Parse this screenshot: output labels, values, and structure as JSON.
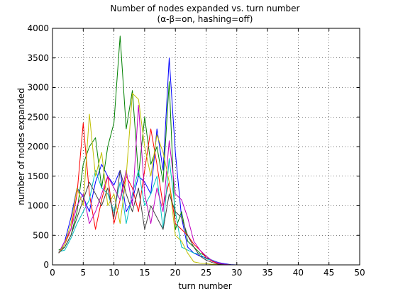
{
  "chart_data": {
    "type": "line",
    "title": "Number of nodes expanded vs. turn number",
    "subtitle": "(α-β=on, hashing=off)",
    "xlabel": "turn number",
    "ylabel": "number of nodes expanded",
    "xlim": [
      0,
      50
    ],
    "ylim": [
      0,
      4000
    ],
    "xticks": [
      0,
      5,
      10,
      15,
      20,
      25,
      30,
      35,
      40,
      45,
      50
    ],
    "yticks": [
      0,
      500,
      1000,
      1500,
      2000,
      2500,
      3000,
      3500,
      4000
    ],
    "grid": true,
    "grid_style": "dotted",
    "legend": "none",
    "series": [
      {
        "color": "#0000ff",
        "x": [
          1,
          2,
          3,
          4,
          5,
          6,
          7,
          8,
          9,
          10,
          11,
          12,
          13,
          14,
          15,
          16,
          17,
          18,
          19,
          20,
          21,
          22,
          23,
          24,
          25,
          26,
          27,
          28,
          29,
          30,
          31,
          32,
          33,
          34,
          35,
          36,
          37,
          38,
          39,
          40,
          41,
          42,
          43,
          44,
          45,
          46,
          47,
          48,
          49,
          50
        ],
        "y": [
          200,
          400,
          800,
          1300,
          1150,
          900,
          1400,
          1700,
          1500,
          1350,
          1600,
          900,
          1100,
          1500,
          1400,
          1200,
          2300,
          1600,
          3500,
          1900,
          800,
          300,
          200,
          150,
          120,
          80,
          40,
          20,
          5,
          0,
          0,
          0,
          0,
          0,
          0,
          0,
          0,
          0,
          0,
          0,
          0,
          0,
          0,
          0,
          0,
          0,
          0,
          0,
          0,
          0
        ]
      },
      {
        "color": "#008000",
        "x": [
          1,
          2,
          3,
          4,
          5,
          6,
          7,
          8,
          9,
          10,
          11,
          12,
          13,
          14,
          15,
          16,
          17,
          18,
          19,
          20,
          21,
          22,
          23,
          24,
          25,
          26,
          27,
          28,
          29,
          30,
          31,
          32,
          33,
          34,
          35,
          36,
          37,
          38,
          39,
          40,
          41,
          42,
          43,
          44,
          45,
          46,
          47,
          48,
          49,
          50
        ],
        "y": [
          250,
          300,
          500,
          900,
          1700,
          2000,
          2150,
          1300,
          2000,
          2400,
          3870,
          2300,
          2950,
          1500,
          2500,
          1700,
          2000,
          1400,
          3100,
          600,
          900,
          400,
          300,
          200,
          150,
          60,
          30,
          10,
          0,
          0,
          0,
          0,
          0,
          0,
          0,
          0,
          0,
          0,
          0,
          0,
          0,
          0,
          0,
          0,
          0,
          0,
          0,
          0,
          0,
          0
        ]
      },
      {
        "color": "#ff0000",
        "x": [
          1,
          2,
          3,
          4,
          5,
          6,
          7,
          8,
          9,
          10,
          11,
          12,
          13,
          14,
          15,
          16,
          17,
          18,
          19,
          20,
          21,
          22,
          23,
          24,
          25,
          26,
          27,
          28,
          29,
          30,
          31,
          32,
          33,
          34,
          35,
          36,
          37,
          38,
          39,
          40,
          41,
          42,
          43,
          44,
          45,
          46,
          47,
          48,
          49,
          50
        ],
        "y": [
          200,
          350,
          600,
          1200,
          2400,
          1200,
          600,
          1100,
          1500,
          700,
          1100,
          1500,
          1300,
          900,
          1600,
          2300,
          1700,
          1000,
          1400,
          700,
          600,
          500,
          350,
          250,
          120,
          60,
          20,
          10,
          0,
          0,
          0,
          0,
          0,
          0,
          0,
          0,
          0,
          0,
          0,
          0,
          0,
          0,
          0,
          0,
          0,
          0,
          0,
          0,
          0,
          0
        ]
      },
      {
        "color": "#00bfbf",
        "x": [
          1,
          2,
          3,
          4,
          5,
          6,
          7,
          8,
          9,
          10,
          11,
          12,
          13,
          14,
          15,
          16,
          17,
          18,
          19,
          20,
          21,
          22,
          23,
          24,
          25,
          26,
          27,
          28,
          29,
          30,
          31,
          32,
          33,
          34,
          35,
          36,
          37,
          38,
          39,
          40,
          41,
          42,
          43,
          44,
          45,
          46,
          47,
          48,
          49,
          50
        ],
        "y": [
          220,
          250,
          450,
          700,
          900,
          1100,
          1600,
          1300,
          1200,
          900,
          1400,
          700,
          1200,
          1600,
          1000,
          1200,
          1500,
          600,
          1800,
          900,
          300,
          250,
          200,
          180,
          100,
          80,
          30,
          10,
          0,
          0,
          0,
          0,
          0,
          0,
          0,
          0,
          0,
          0,
          0,
          0,
          0,
          0,
          0,
          0,
          0,
          0,
          0,
          0,
          0,
          0
        ]
      },
      {
        "color": "#bf00bf",
        "x": [
          1,
          2,
          3,
          4,
          5,
          6,
          7,
          8,
          9,
          10,
          11,
          12,
          13,
          14,
          15,
          16,
          17,
          18,
          19,
          20,
          21,
          22,
          23,
          24,
          25,
          26,
          27,
          28,
          29,
          30,
          31,
          32,
          33,
          34,
          35,
          36,
          37,
          38,
          39,
          40,
          41,
          42,
          43,
          44,
          45,
          46,
          47,
          48,
          49,
          50
        ],
        "y": [
          200,
          400,
          600,
          1000,
          1200,
          700,
          900,
          1200,
          1500,
          1300,
          1100,
          1600,
          1000,
          2700,
          1200,
          700,
          1300,
          900,
          2100,
          1200,
          1100,
          800,
          400,
          250,
          150,
          70,
          30,
          10,
          0,
          0,
          0,
          0,
          0,
          0,
          0,
          0,
          0,
          0,
          0,
          0,
          0,
          0,
          0,
          0,
          0,
          0,
          0,
          0,
          0,
          0
        ]
      },
      {
        "color": "#bfbf00",
        "x": [
          1,
          2,
          3,
          4,
          5,
          6,
          7,
          8,
          9,
          10,
          11,
          12,
          13,
          14,
          15,
          16,
          17,
          18,
          19,
          20,
          21,
          22,
          23,
          24,
          25,
          26,
          27,
          28,
          29,
          30,
          31,
          32,
          33,
          34,
          35,
          36,
          37,
          38,
          39,
          40,
          41,
          42,
          43,
          44,
          45,
          46,
          47,
          48,
          49,
          50
        ],
        "y": [
          200,
          350,
          700,
          1300,
          1000,
          2550,
          1500,
          1900,
          1000,
          1200,
          700,
          1500,
          2900,
          2800,
          2000,
          1500,
          2200,
          1900,
          1400,
          500,
          400,
          200,
          50,
          30,
          20,
          10,
          5,
          0,
          0,
          0,
          0,
          0,
          0,
          0,
          0,
          0,
          0,
          0,
          0,
          0,
          0,
          0,
          0,
          0,
          0,
          0,
          0,
          0,
          0,
          0
        ]
      },
      {
        "color": "#404040",
        "x": [
          1,
          2,
          3,
          4,
          5,
          6,
          7,
          8,
          9,
          10,
          11,
          12,
          13,
          14,
          15,
          16,
          17,
          18,
          19,
          20,
          21,
          22,
          23,
          24,
          25,
          26,
          27,
          28,
          29,
          30,
          31,
          32,
          33,
          34,
          35,
          36,
          37,
          38,
          39,
          40,
          41,
          42,
          43,
          44,
          45,
          46,
          47,
          48,
          49,
          50
        ],
        "y": [
          200,
          300,
          500,
          800,
          1100,
          1400,
          1200,
          1000,
          1300,
          800,
          1600,
          1200,
          900,
          1300,
          600,
          1000,
          800,
          600,
          1200,
          900,
          800,
          500,
          300,
          150,
          80,
          40,
          10,
          0,
          0,
          0,
          0,
          0,
          0,
          0,
          0,
          0,
          0,
          0,
          0,
          0,
          0,
          0,
          0,
          0,
          0,
          0,
          0,
          0,
          0,
          0
        ]
      }
    ]
  }
}
